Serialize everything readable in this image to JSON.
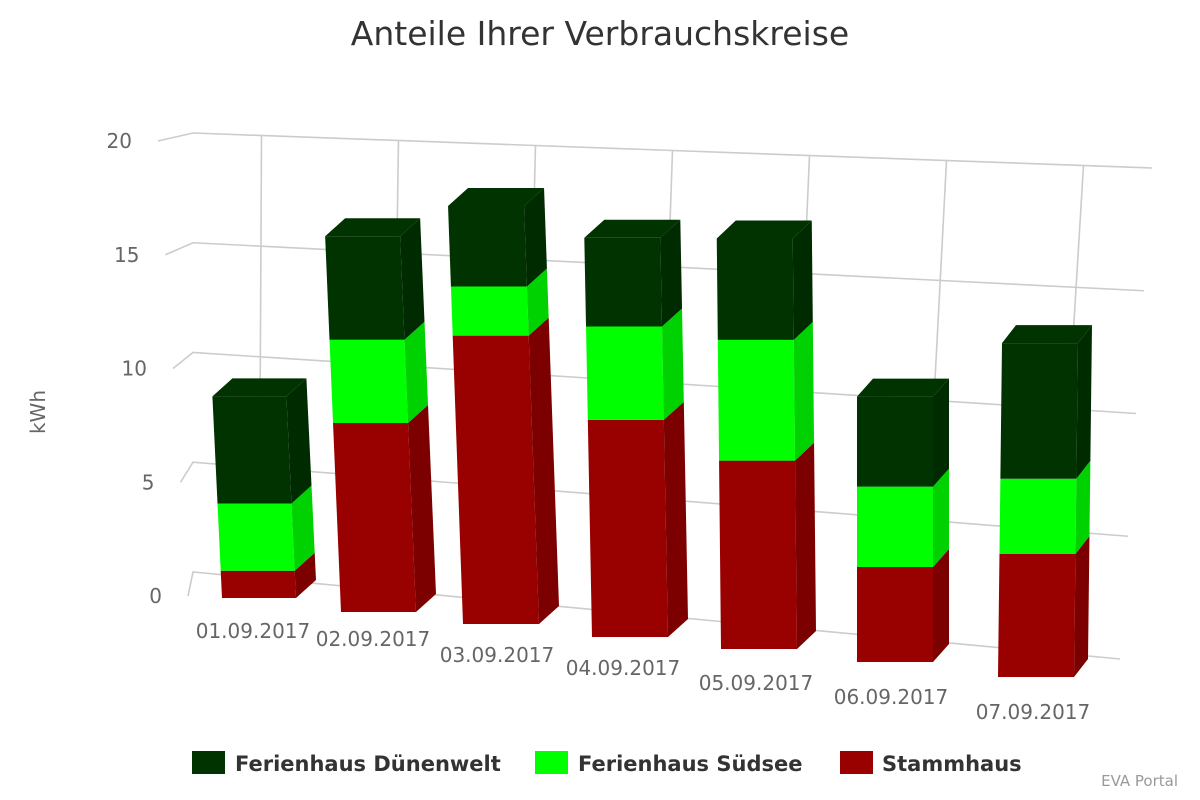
{
  "chart_data": {
    "type": "bar",
    "stacked": true,
    "three_d": true,
    "title": "Anteile Ihrer Verbrauchskreise",
    "ylabel": "kWh",
    "xlabel": "",
    "ylim": [
      0,
      20
    ],
    "yticks": [
      "0",
      "5",
      "10",
      "15",
      "20"
    ],
    "grid": true,
    "legend_position": "bottom",
    "categories": [
      "01.09.2017",
      "02.09.2017",
      "03.09.2017",
      "04.09.2017",
      "05.09.2017",
      "06.09.2017",
      "07.09.2017"
    ],
    "series": [
      {
        "name": "Stammhaus",
        "color": "#990000",
        "values": [
          1.3,
          8.4,
          12.9,
          9.3,
          7.8,
          3.9,
          4.9
        ]
      },
      {
        "name": "Ferienhaus Südsee",
        "color": "#00ff00",
        "values": [
          3.2,
          3.7,
          2.2,
          4.0,
          5.0,
          3.3,
          3.0
        ]
      },
      {
        "name": "Ferienhaus Dünenwelt",
        "color": "#003300",
        "values": [
          5.1,
          4.6,
          3.6,
          3.8,
          4.2,
          3.7,
          5.4
        ]
      }
    ]
  },
  "legend": {
    "items": [
      {
        "label": "Ferienhaus Dünenwelt",
        "color": "#003300"
      },
      {
        "label": "Ferienhaus Südsee",
        "color": "#00ff00"
      },
      {
        "label": "Stammhaus",
        "color": "#990000"
      }
    ]
  },
  "credits": "EVA Portal"
}
